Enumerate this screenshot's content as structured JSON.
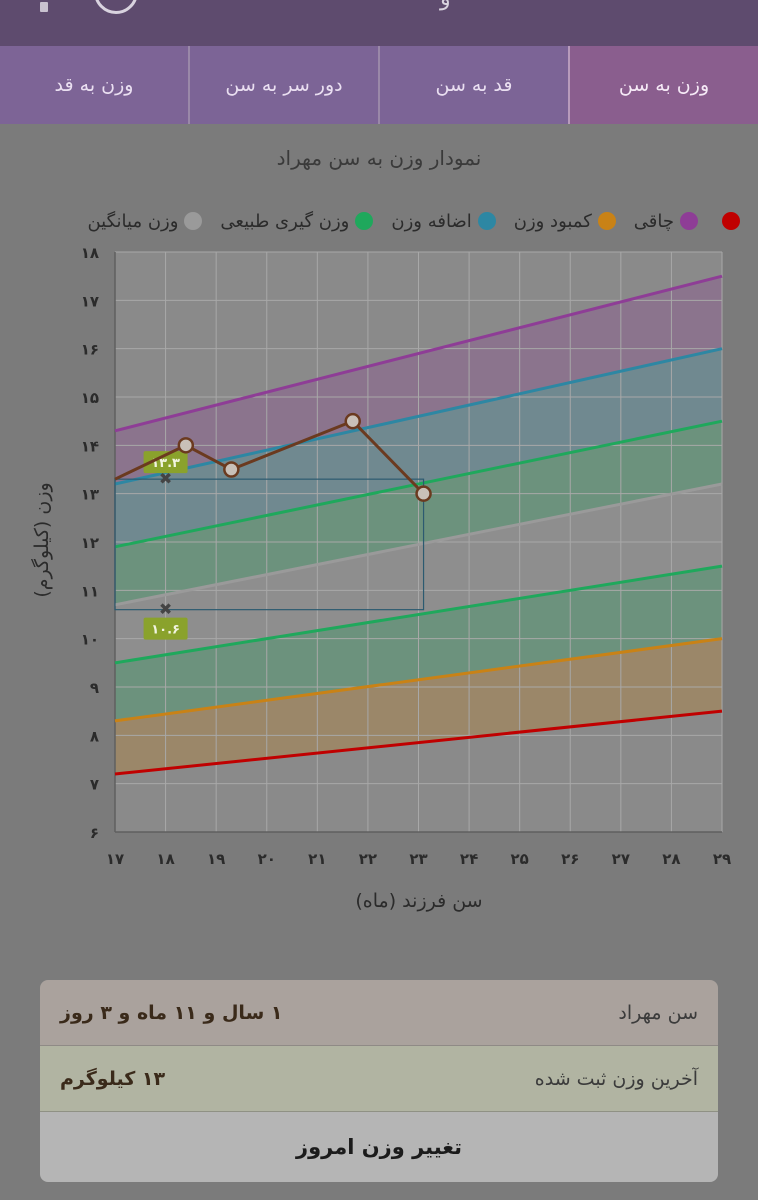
{
  "header": {
    "title_tail": "و"
  },
  "tabs": [
    {
      "label": "وزن به سن",
      "active": true
    },
    {
      "label": "قد به سن",
      "active": false
    },
    {
      "label": "دور سر به سن",
      "active": false
    },
    {
      "label": "وزن به قد",
      "active": false
    }
  ],
  "chart_title": "نمودار وزن به سن مهراد",
  "legend": [
    {
      "label": "",
      "color": "#c00000"
    },
    {
      "label": "چاقی",
      "color": "#8e3d96"
    },
    {
      "label": "کمبود وزن",
      "color": "#c98216"
    },
    {
      "label": "اضافه وزن",
      "color": "#2d87a3"
    },
    {
      "label": "وزن گیری طبیعی",
      "color": "#1fa85c"
    },
    {
      "label": "وزن میانگین",
      "color": "#9a9a9a"
    }
  ],
  "chart_data": {
    "type": "line",
    "xlabel": "سن فرزند (ماه)",
    "ylabel": "وزن (کیلوگرم)",
    "xlim": [
      17,
      29
    ],
    "ylim": [
      6,
      18
    ],
    "x_ticks": [
      "۱۷",
      "۱۸",
      "۱۹",
      "۲۰",
      "۲۱",
      "۲۲",
      "۲۳",
      "۲۴",
      "۲۵",
      "۲۶",
      "۲۷",
      "۲۸",
      "۲۹"
    ],
    "y_ticks": [
      "۶",
      "۷",
      "۸",
      "۹",
      "۱۰",
      "۱۱",
      "۱۲",
      "۱۳",
      "۱۴",
      "۱۵",
      "۱۶",
      "۱۷",
      "۱۸"
    ],
    "grid": true,
    "bands": [
      {
        "name": "چاقی",
        "color": "#8e3d96",
        "x": [
          17,
          29
        ],
        "y": [
          14.3,
          17.5
        ]
      },
      {
        "name": "اضافه وزن",
        "color": "#2d87a3",
        "x": [
          17,
          29
        ],
        "y": [
          13.2,
          16.0
        ]
      },
      {
        "name": "وزن گیری طبیعی",
        "color": "#1fa85c",
        "x": [
          17,
          29
        ],
        "y": [
          11.9,
          14.5
        ]
      },
      {
        "name": "وزن میانگین",
        "color": "#9a9a9a",
        "x": [
          17,
          29
        ],
        "y": [
          10.7,
          13.2
        ]
      },
      {
        "name": "وزن گیری طبیعی",
        "color": "#1fa85c",
        "x": [
          17,
          29
        ],
        "y": [
          9.5,
          11.5
        ]
      },
      {
        "name": "کمبود وزن",
        "color": "#c98216",
        "x": [
          17,
          29
        ],
        "y": [
          8.3,
          10.0
        ]
      },
      {
        "name": "",
        "color": "#c00000",
        "x": [
          17,
          29
        ],
        "y": [
          7.2,
          8.5
        ]
      }
    ],
    "series": [
      {
        "color": "#6b3a1f",
        "x": [
          17,
          18.4,
          19.3,
          21.7,
          23.1
        ],
        "y": [
          13.3,
          14.0,
          13.5,
          14.5,
          13.0
        ]
      }
    ],
    "range_box": {
      "x": [
        17,
        23.1
      ],
      "y": [
        10.6,
        13.3
      ]
    },
    "range_labels": [
      {
        "x": 18,
        "y": 13.3,
        "text": "۱۳.۳"
      },
      {
        "x": 18,
        "y": 10.6,
        "text": "۱۰.۶"
      }
    ]
  },
  "info": {
    "age_label": "سن مهراد",
    "age_value": "۱ سال و ۱۱ ماه و ۳ روز",
    "weight_label": "آخرین وزن ثبت شده",
    "weight_value": "۱۳ کیلوگرم",
    "button_label": "تغییر وزن امروز"
  }
}
